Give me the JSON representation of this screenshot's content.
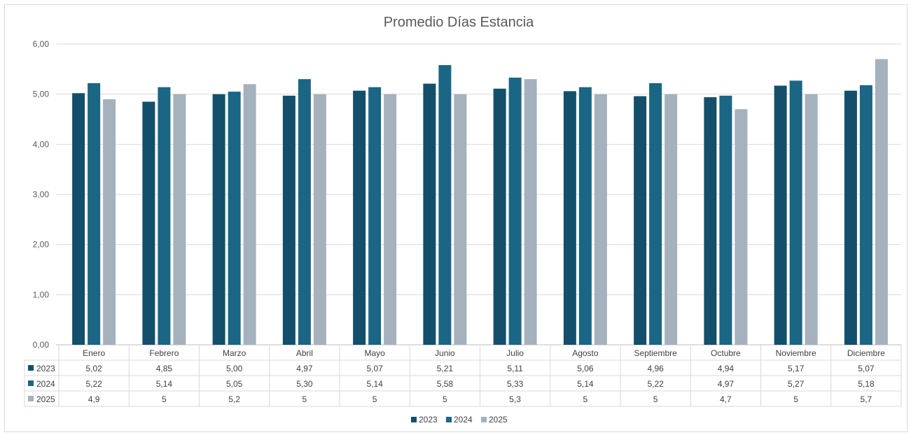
{
  "chart_data": {
    "type": "bar",
    "title": "Promedio Días Estancia",
    "categories": [
      "Enero",
      "Febrero",
      "Marzo",
      "Abril",
      "Mayo",
      "Junio",
      "Julio",
      "Agosto",
      "Septiembre",
      "Octubre",
      "Noviembre",
      "Diciembre"
    ],
    "ylim": [
      0,
      6
    ],
    "yticks": [
      0,
      1,
      2,
      3,
      4,
      5,
      6
    ],
    "ytick_labels": [
      "0,00",
      "1,00",
      "2,00",
      "3,00",
      "4,00",
      "5,00",
      "6,00"
    ],
    "grid": true,
    "legend_position": "bottom",
    "series": [
      {
        "name": "2023",
        "color": "#134f6b",
        "values": [
          5.02,
          4.85,
          5.0,
          4.97,
          5.07,
          5.21,
          5.11,
          5.06,
          4.96,
          4.94,
          5.17,
          5.07
        ],
        "labels": [
          "5,02",
          "4,85",
          "5,00",
          "4,97",
          "5,07",
          "5,21",
          "5,11",
          "5,06",
          "4,96",
          "4,94",
          "5,17",
          "5,07"
        ]
      },
      {
        "name": "2024",
        "color": "#1b6585",
        "values": [
          5.22,
          5.14,
          5.05,
          5.3,
          5.14,
          5.58,
          5.33,
          5.14,
          5.22,
          4.97,
          5.27,
          5.18
        ],
        "labels": [
          "5,22",
          "5,14",
          "5,05",
          "5,30",
          "5,14",
          "5,58",
          "5,33",
          "5,14",
          "5,22",
          "4,97",
          "5,27",
          "5,18"
        ]
      },
      {
        "name": "2025",
        "color": "#a5b1bd",
        "values": [
          4.9,
          5,
          5.2,
          5,
          5,
          5,
          5.3,
          5,
          5,
          4.7,
          5,
          5.7
        ],
        "labels": [
          "4,9",
          "5",
          "5,2",
          "5",
          "5",
          "5",
          "5,3",
          "5",
          "5",
          "4,7",
          "5",
          "5,7"
        ]
      }
    ]
  }
}
